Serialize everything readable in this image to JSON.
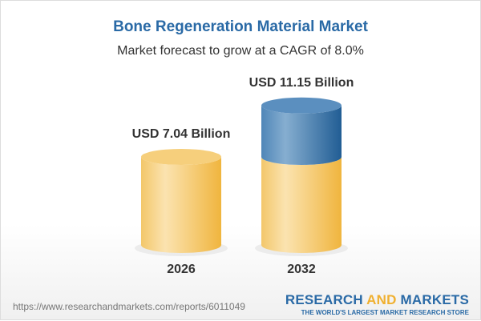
{
  "header": {
    "title": "Bone Regeneration Material Market",
    "subtitle": "Market forecast to grow at a CAGR of 8.0%"
  },
  "chart_data": {
    "type": "bar",
    "style": "3d-cylinder",
    "categories": [
      "2026",
      "2032"
    ],
    "values": [
      7.04,
      11.15
    ],
    "data_labels": [
      "USD 7.04 Billion",
      "USD 11.15 Billion"
    ],
    "unit": "USD Billion",
    "colors": {
      "base": "#f3c35a",
      "growth": "#3e7bb0"
    }
  },
  "footer": {
    "url": "https://www.researchandmarkets.com/reports/6011049",
    "logo_part1": "RESEARCH ",
    "logo_part2": "AND",
    "logo_part3": " MARKETS",
    "tagline": "THE WORLD'S LARGEST MARKET RESEARCH STORE"
  }
}
